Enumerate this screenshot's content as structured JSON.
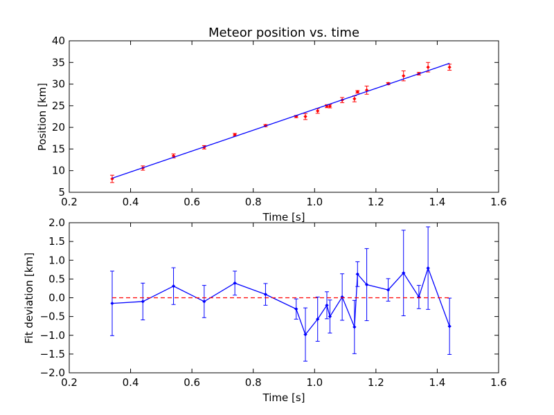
{
  "colors": {
    "fit_line": "#0000ff",
    "data_points": "#ff0000",
    "zero_line": "#ff0000",
    "deviation": "#0000ff",
    "axes": "#000000"
  },
  "chart_data": [
    {
      "type": "scatter",
      "title": "Meteor position vs. time",
      "xlabel": "Time [s]",
      "ylabel": "Position [km]",
      "xlim": [
        0.2,
        1.6
      ],
      "ylim": [
        5,
        40
      ],
      "xticks": [
        0.2,
        0.4,
        0.6,
        0.8,
        1.0,
        1.2,
        1.4,
        1.6
      ],
      "xtick_labels": [
        "0.2",
        "0.4",
        "0.6",
        "0.8",
        "1.0",
        "1.2",
        "1.4",
        "1.6"
      ],
      "yticks": [
        5,
        10,
        15,
        20,
        25,
        30,
        35,
        40
      ],
      "ytick_labels": [
        "5",
        "10",
        "15",
        "20",
        "25",
        "30",
        "35",
        "40"
      ],
      "grid": false,
      "series": [
        {
          "kind": "errorbar-points",
          "x": [
            0.34,
            0.44,
            0.54,
            0.64,
            0.74,
            0.84,
            0.94,
            0.97,
            1.01,
            1.04,
            1.05,
            1.09,
            1.13,
            1.14,
            1.17,
            1.24,
            1.29,
            1.34,
            1.37,
            1.44
          ],
          "y": [
            8.1,
            10.6,
            13.4,
            15.4,
            18.3,
            20.4,
            22.5,
            22.5,
            23.8,
            24.9,
            24.9,
            26.3,
            26.6,
            28.2,
            28.6,
            30.1,
            31.9,
            32.4,
            33.9,
            33.9
          ],
          "yerr": [
            0.85,
            0.5,
            0.45,
            0.4,
            0.3,
            0.25,
            0.25,
            0.7,
            0.55,
            0.35,
            0.4,
            0.6,
            0.7,
            0.3,
            0.95,
            0.25,
            1.15,
            0.3,
            1.1,
            0.7
          ]
        },
        {
          "kind": "fit-line",
          "x": [
            0.34,
            1.44
          ],
          "y": [
            8.25,
            34.8
          ]
        }
      ]
    },
    {
      "type": "line",
      "xlabel": "Time [s]",
      "ylabel": "Fit deviation [km]",
      "xlim": [
        0.2,
        1.6
      ],
      "ylim": [
        -2.0,
        2.0
      ],
      "xticks": [
        0.2,
        0.4,
        0.6,
        0.8,
        1.0,
        1.2,
        1.4,
        1.6
      ],
      "xtick_labels": [
        "0.2",
        "0.4",
        "0.6",
        "0.8",
        "1.0",
        "1.2",
        "1.4",
        "1.6"
      ],
      "yticks": [
        -2.0,
        -1.5,
        -1.0,
        -0.5,
        0.0,
        0.5,
        1.0,
        1.5,
        2.0
      ],
      "ytick_labels": [
        "−2.0",
        "−1.5",
        "−1.0",
        "−0.5",
        "0.0",
        "0.5",
        "1.0",
        "1.5",
        "2.0"
      ],
      "grid": false,
      "series": [
        {
          "kind": "errorbar-line",
          "x": [
            0.34,
            0.44,
            0.54,
            0.64,
            0.74,
            0.84,
            0.94,
            0.97,
            1.01,
            1.04,
            1.05,
            1.09,
            1.13,
            1.14,
            1.17,
            1.24,
            1.29,
            1.34,
            1.37,
            1.44
          ],
          "y": [
            -0.15,
            -0.1,
            0.31,
            -0.1,
            0.39,
            0.09,
            -0.3,
            -0.98,
            -0.57,
            -0.2,
            -0.5,
            0.02,
            -0.78,
            0.63,
            0.35,
            0.21,
            0.66,
            0.02,
            0.79,
            -0.76
          ],
          "yerr": [
            0.86,
            0.49,
            0.49,
            0.43,
            0.32,
            0.29,
            0.27,
            0.71,
            0.59,
            0.36,
            0.44,
            0.62,
            0.71,
            0.33,
            0.96,
            0.3,
            1.14,
            0.31,
            1.1,
            0.75
          ]
        },
        {
          "kind": "reference-line",
          "x": [
            0.34,
            1.44
          ],
          "y": [
            0.0,
            0.0
          ]
        }
      ]
    }
  ]
}
